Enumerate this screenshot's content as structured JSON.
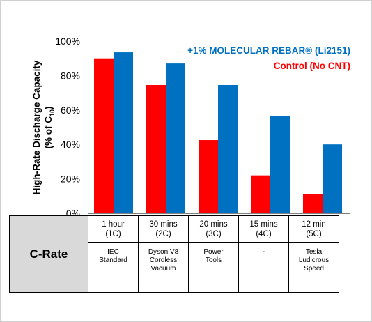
{
  "chart_data": {
    "type": "bar",
    "title": "",
    "ylabel_line1": "High-Rate Discharge Capacity",
    "ylabel_line2_prefix": "(% of C",
    "ylabel_line2_sub": "10",
    "ylabel_line2_suffix": ")",
    "ylim": [
      0,
      100
    ],
    "yticks": [
      0,
      20,
      40,
      60,
      80,
      100
    ],
    "ytick_labels": [
      "0%",
      "20%",
      "40%",
      "60%",
      "80%",
      "100%"
    ],
    "grid": false,
    "legend_position": "top-right",
    "categories": [
      "1 hour (1C)",
      "30 mins (2C)",
      "20 mins (3C)",
      "15 mins (4C)",
      "12 min (5C)"
    ],
    "series": [
      {
        "name": "Control (No CNT)",
        "color": "#ff0000",
        "values": [
          90,
          74.5,
          42.5,
          22,
          11
        ]
      },
      {
        "name": "+1% MOLECULAR REBAR® (Li2151)",
        "color": "#0070c0",
        "values": [
          93.5,
          87,
          74.5,
          56.5,
          40
        ]
      }
    ]
  },
  "legend": {
    "entries": [
      {
        "label": "+1% MOLECULAR REBAR® (Li2151)",
        "color": "#0070c0"
      },
      {
        "label": "Control (No CNT)",
        "color": "#ff0000"
      }
    ]
  },
  "table": {
    "row_header": "C-Rate",
    "columns": [
      {
        "rate": "1 hour\n(1C)",
        "application": "IEC\nStandard"
      },
      {
        "rate": "30 mins\n(2C)",
        "application": "Dyson V8\nCordless\nVacuum"
      },
      {
        "rate": "20 mins\n(3C)",
        "application": "Power\nTools"
      },
      {
        "rate": "15 mins\n(4C)",
        "application": "-"
      },
      {
        "rate": "12 min\n(5C)",
        "application": "Tesla\nLudicrous\nSpeed"
      }
    ]
  }
}
